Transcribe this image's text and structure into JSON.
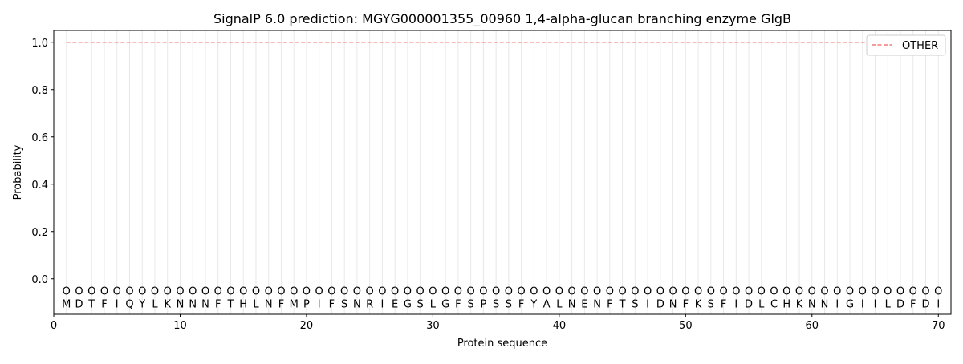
{
  "chart_data": {
    "type": "line",
    "title": "SignalP 6.0 prediction: MGYG000001355_00960 1,4-alpha-glucan branching enzyme GlgB",
    "xlabel": "Protein sequence",
    "ylabel": "Probability",
    "xlim": [
      0,
      71
    ],
    "ylim": [
      -0.15,
      1.05
    ],
    "xticks": [
      0,
      10,
      20,
      30,
      40,
      50,
      60,
      70
    ],
    "yticks": [
      0.0,
      0.2,
      0.4,
      0.6,
      0.8,
      1.0
    ],
    "ytick_labels": [
      "0.0",
      "0.2",
      "0.4",
      "0.6",
      "0.8",
      "1.0"
    ],
    "grid": "vertical lines at each residue",
    "legend_position": "top-right",
    "sequence": [
      "M",
      "D",
      "T",
      "F",
      "I",
      "Q",
      "Y",
      "L",
      "K",
      "N",
      "N",
      "N",
      "F",
      "T",
      "H",
      "L",
      "N",
      "F",
      "M",
      "P",
      "I",
      "F",
      "S",
      "N",
      "R",
      "I",
      "E",
      "G",
      "S",
      "L",
      "G",
      "F",
      "S",
      "P",
      "S",
      "S",
      "F",
      "Y",
      "A",
      "L",
      "N",
      "E",
      "N",
      "F",
      "T",
      "S",
      "I",
      "D",
      "N",
      "F",
      "K",
      "S",
      "F",
      "I",
      "D",
      "L",
      "C",
      "H",
      "K",
      "N",
      "N",
      "I",
      "G",
      "I",
      "I",
      "L",
      "D",
      "F",
      "D",
      "I"
    ],
    "marker_label": "O",
    "series": [
      {
        "name": "OTHER",
        "color": "#f07c7c",
        "style": "dashed",
        "x_range": [
          1,
          70
        ],
        "value": 1.0
      }
    ]
  }
}
